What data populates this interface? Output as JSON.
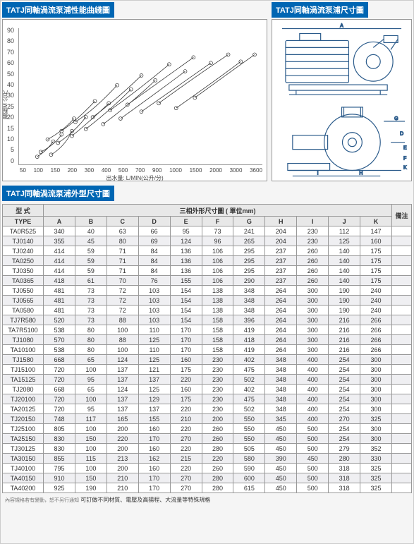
{
  "headers": {
    "curve_title": "TATJ同軸渦流泵浦性能曲綫圖",
    "dimension_title": "TATJ同軸渦流泵浦尺寸圖",
    "outline_title": "TATJ同軸渦流泵浦外型尺寸圖"
  },
  "chart": {
    "y_labels": [
      "90",
      "80",
      "70",
      "60",
      "50",
      "40",
      "30",
      "25",
      "20",
      "15",
      "10",
      "5",
      "0"
    ],
    "y_title": "揚程M 公尺",
    "x_labels": [
      "50",
      "100",
      "150",
      "200",
      "300",
      "400",
      "500",
      "700",
      "900",
      "1000",
      "1500",
      "2000",
      "3000",
      "3600"
    ],
    "x_title": "出水量: L/MIN(公升/分)",
    "curves": [
      "M 25 185 Q 40 175 48 163",
      "M 30 178 Q 50 168 60 153",
      "M 45 182 Q 65 170 75 148",
      "M 40 160 Q 62 148 78 130",
      "M 55 165 Q 78 150 95 128",
      "M 60 148 Q 85 130 108 105",
      "M 75 155 Q 100 135 128 108",
      "M 80 135 Q 110 115 140 82",
      "M 95 145 Q 128 120 160 88",
      "M 105 128 Q 140 102 175 68",
      "M 120 138 Q 158 110 195 75",
      "M 130 118 Q 172 88 215 52",
      "M 145 130 Q 190 98 238 62",
      "M 155 110 Q 200 78 250 42",
      "M 175 120 Q 225 85 275 50",
      "M 200 108 Q 252 70 300 38",
      "M 225 115 Q 275 80 318 48",
      "M 252 100 Q 300 65 338 38"
    ]
  },
  "table": {
    "type_header1": "型 式",
    "type_header2": "TYPE",
    "main_header": "三相外形尺寸圖 ( 單位mm)",
    "note_header": "備注",
    "cols": [
      "A",
      "B",
      "C",
      "D",
      "E",
      "F",
      "G",
      "H",
      "I",
      "J",
      "K"
    ],
    "rows": [
      {
        "t": "TA0R525",
        "d": [
          340,
          40,
          63,
          66,
          95,
          73,
          241,
          204,
          230,
          112,
          147
        ]
      },
      {
        "t": "TJ0140",
        "d": [
          355,
          45,
          80,
          69,
          124,
          96,
          265,
          204,
          230,
          125,
          160
        ]
      },
      {
        "t": "TJ0240",
        "d": [
          414,
          59,
          71,
          84,
          136,
          106,
          295,
          237,
          260,
          140,
          175
        ]
      },
      {
        "t": "TA0250",
        "d": [
          414,
          59,
          71,
          84,
          136,
          106,
          295,
          237,
          260,
          140,
          175
        ]
      },
      {
        "t": "TJ0350",
        "d": [
          414,
          59,
          71,
          84,
          136,
          106,
          295,
          237,
          260,
          140,
          175
        ]
      },
      {
        "t": "TA0365",
        "d": [
          418,
          61,
          70,
          76,
          155,
          106,
          290,
          237,
          260,
          140,
          175
        ]
      },
      {
        "t": "TJ0550",
        "d": [
          481,
          73,
          72,
          103,
          154,
          138,
          348,
          264,
          300,
          190,
          240
        ]
      },
      {
        "t": "TJ0565",
        "d": [
          481,
          73,
          72,
          103,
          154,
          138,
          348,
          264,
          300,
          190,
          240
        ]
      },
      {
        "t": "TA0580",
        "d": [
          481,
          73,
          72,
          103,
          154,
          138,
          348,
          264,
          300,
          190,
          240
        ]
      },
      {
        "t": "TJ7R580",
        "d": [
          520,
          73,
          88,
          103,
          154,
          158,
          396,
          264,
          300,
          216,
          266
        ]
      },
      {
        "t": "TA7R5100",
        "d": [
          538,
          80,
          100,
          110,
          170,
          158,
          419,
          264,
          300,
          216,
          266
        ]
      },
      {
        "t": "TJ1080",
        "d": [
          570,
          80,
          88,
          125,
          170,
          158,
          418,
          264,
          300,
          216,
          266
        ]
      },
      {
        "t": "TA10100",
        "d": [
          538,
          80,
          100,
          110,
          170,
          158,
          419,
          264,
          300,
          216,
          266
        ]
      },
      {
        "t": "TJ1580",
        "d": [
          668,
          65,
          124,
          125,
          160,
          230,
          402,
          348,
          400,
          254,
          300
        ]
      },
      {
        "t": "TJ15100",
        "d": [
          720,
          100,
          137,
          121,
          175,
          230,
          475,
          348,
          400,
          254,
          300
        ]
      },
      {
        "t": "TA15125",
        "d": [
          720,
          95,
          137,
          137,
          220,
          230,
          502,
          348,
          400,
          254,
          300
        ]
      },
      {
        "t": "TJ2080",
        "d": [
          668,
          65,
          124,
          125,
          160,
          230,
          402,
          348,
          400,
          254,
          300
        ]
      },
      {
        "t": "TJ20100",
        "d": [
          720,
          100,
          137,
          129,
          175,
          230,
          475,
          348,
          400,
          254,
          300
        ]
      },
      {
        "t": "TA20125",
        "d": [
          720,
          95,
          137,
          137,
          220,
          230,
          502,
          348,
          400,
          254,
          300
        ]
      },
      {
        "t": "TJ20150",
        "d": [
          748,
          117,
          165,
          155,
          210,
          200,
          550,
          345,
          400,
          270,
          325
        ]
      },
      {
        "t": "TJ25100",
        "d": [
          805,
          100,
          200,
          160,
          220,
          260,
          550,
          450,
          500,
          254,
          300
        ]
      },
      {
        "t": "TA25150",
        "d": [
          830,
          150,
          220,
          170,
          270,
          260,
          550,
          450,
          500,
          254,
          300
        ]
      },
      {
        "t": "TJ30125",
        "d": [
          830,
          100,
          200,
          160,
          220,
          280,
          505,
          450,
          500,
          279,
          352
        ]
      },
      {
        "t": "TA30150",
        "d": [
          855,
          115,
          213,
          162,
          215,
          220,
          580,
          390,
          450,
          280,
          330
        ]
      },
      {
        "t": "TJ40100",
        "d": [
          795,
          100,
          200,
          160,
          220,
          260,
          590,
          450,
          500,
          318,
          325
        ]
      },
      {
        "t": "TA40150",
        "d": [
          910,
          150,
          210,
          170,
          270,
          280,
          600,
          450,
          500,
          318,
          325
        ]
      },
      {
        "t": "TA40200",
        "d": [
          925,
          190,
          210,
          170,
          270,
          280,
          615,
          450,
          500,
          318,
          325
        ]
      }
    ]
  },
  "footer": {
    "small": "內容規格若有變動，恕不另行通知",
    "main": "可訂做不同材質、電壓及高揚程、大流量等特殊規格"
  }
}
